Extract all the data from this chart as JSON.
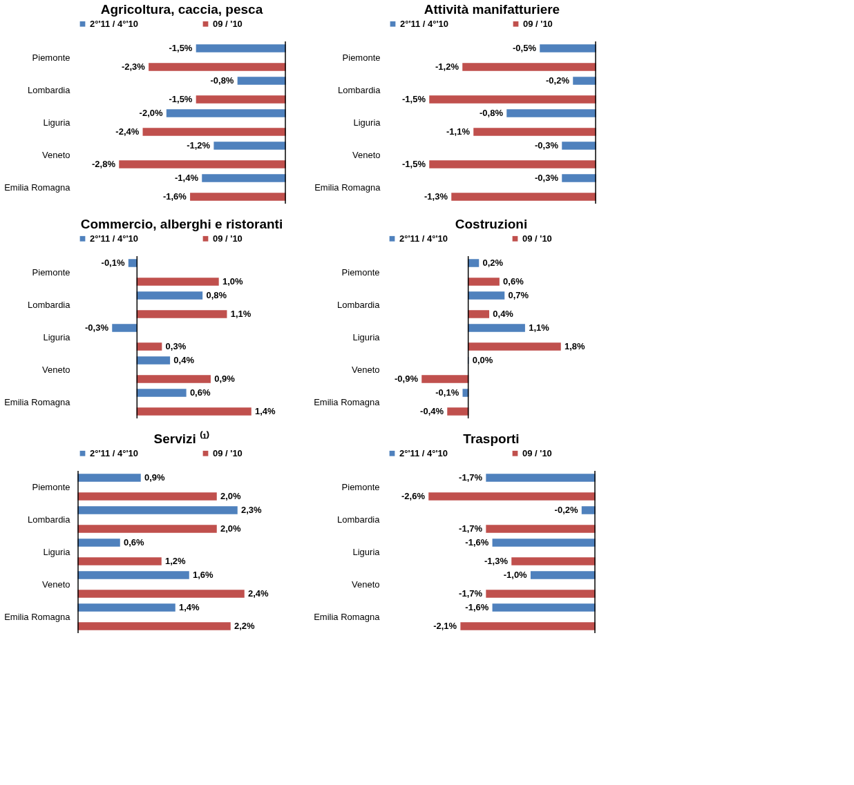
{
  "chart_data": [
    {
      "type": "bar",
      "orientation": "horizontal",
      "title": "Agricoltura, caccia, pesca",
      "categories": [
        "Piemonte",
        "Lombardia",
        "Liguria",
        "Veneto",
        "Emilia Romagna"
      ],
      "legend": "top",
      "tick_labels": "y",
      "series": [
        {
          "name": "2°'11 / 4°'10",
          "color": "#4f81bd",
          "values": [
            -1.5,
            -0.8,
            -2.0,
            -1.2,
            -1.4
          ],
          "value_labels": [
            "-1,5%",
            "-0,8%",
            "-2,0%",
            "-1,2%",
            "-1,4%"
          ]
        },
        {
          "name": "09 / '10",
          "color": "#c0504d",
          "values": [
            -2.3,
            -1.5,
            -2.4,
            -2.8,
            -1.6
          ],
          "value_labels": [
            "-2,3%",
            "-1,5%",
            "-2,4%",
            "-2,8%",
            "-1,6%"
          ]
        }
      ]
    },
    {
      "type": "bar",
      "orientation": "horizontal",
      "title": "Attività manifatturiere",
      "categories": [
        "Piemonte",
        "Lombardia",
        "Liguria",
        "Veneto",
        "Emilia Romagna"
      ],
      "legend": "top",
      "tick_labels": "y",
      "series": [
        {
          "name": "2°'11 / 4°'10",
          "color": "#4f81bd",
          "values": [
            -0.5,
            -0.2,
            -0.8,
            -0.3,
            -0.3
          ],
          "value_labels": [
            "-0,5%",
            "-0,2%",
            "-0,8%",
            "-0,3%",
            "-0,3%"
          ]
        },
        {
          "name": "09 / '10",
          "color": "#c0504d",
          "values": [
            -1.2,
            -1.5,
            -1.1,
            -1.5,
            -1.3
          ],
          "value_labels": [
            "-1,2%",
            "-1,5%",
            "-1,1%",
            "-1,5%",
            "-1,3%"
          ]
        }
      ]
    },
    {
      "type": "bar",
      "orientation": "horizontal",
      "title": "Commercio, alberghi e ristoranti",
      "categories": [
        "Piemonte",
        "Lombardia",
        "Liguria",
        "Veneto",
        "Emilia Romagna"
      ],
      "legend": "top",
      "tick_labels": "y",
      "series": [
        {
          "name": "2°'11 / 4°'10",
          "color": "#4f81bd",
          "values": [
            -0.1,
            0.8,
            -0.3,
            0.4,
            0.6
          ],
          "value_labels": [
            "-0,1%",
            "0,8%",
            "-0,3%",
            "0,4%",
            "0,6%"
          ]
        },
        {
          "name": "09 / '10",
          "color": "#c0504d",
          "values": [
            1.0,
            1.1,
            0.3,
            0.9,
            1.4
          ],
          "value_labels": [
            "1,0%",
            "1,1%",
            "0,3%",
            "0,9%",
            "1,4%"
          ]
        }
      ]
    },
    {
      "type": "bar",
      "orientation": "horizontal",
      "title": "Costruzioni",
      "categories": [
        "Piemonte",
        "Lombardia",
        "Liguria",
        "Veneto",
        "Emilia Romagna"
      ],
      "legend": "top",
      "tick_labels": "y",
      "series": [
        {
          "name": "2°'11 / 4°'10",
          "color": "#4f81bd",
          "values": [
            0.2,
            0.7,
            1.1,
            0.0,
            -0.1
          ],
          "value_labels": [
            "0,2%",
            "0,7%",
            "1,1%",
            "0,0%",
            "-0,1%"
          ]
        },
        {
          "name": "09 / '10",
          "color": "#c0504d",
          "values": [
            0.6,
            0.4,
            1.8,
            -0.9,
            -0.4
          ],
          "value_labels": [
            "0,6%",
            "0,4%",
            "1,8%",
            "-0,9%",
            "-0,4%"
          ]
        }
      ]
    },
    {
      "type": "bar",
      "orientation": "horizontal",
      "title": "Servizi ⁽¹⁾",
      "categories": [
        "Piemonte",
        "Lombardia",
        "Liguria",
        "Veneto",
        "Emilia Romagna"
      ],
      "legend": "top",
      "tick_labels": "y",
      "series": [
        {
          "name": "2°'11 / 4°'10",
          "color": "#4f81bd",
          "values": [
            0.9,
            2.3,
            0.6,
            1.6,
            1.4
          ],
          "value_labels": [
            "0,9%",
            "2,3%",
            "0,6%",
            "1,6%",
            "1,4%"
          ]
        },
        {
          "name": "09 / '10",
          "color": "#c0504d",
          "values": [
            2.0,
            2.0,
            1.2,
            2.4,
            2.2
          ],
          "value_labels": [
            "2,0%",
            "2,0%",
            "1,2%",
            "2,4%",
            "2,2%"
          ]
        }
      ]
    },
    {
      "type": "bar",
      "orientation": "horizontal",
      "title": "Trasporti",
      "categories": [
        "Piemonte",
        "Lombardia",
        "Liguria",
        "Veneto",
        "Emilia Romagna"
      ],
      "legend": "top",
      "tick_labels": "y",
      "series": [
        {
          "name": "2°'11 / 4°'10",
          "color": "#4f81bd",
          "values": [
            -1.7,
            -0.2,
            -1.6,
            -1.0,
            -1.6
          ],
          "value_labels": [
            "-1,7%",
            "-0,2%",
            "-1,6%",
            "-1,0%",
            "-1,6%"
          ]
        },
        {
          "name": "09 / '10",
          "color": "#c0504d",
          "values": [
            -2.6,
            -1.7,
            -1.3,
            -1.7,
            -2.1
          ],
          "value_labels": [
            "-2,6%",
            "-1,7%",
            "-1,3%",
            "-1,7%",
            "-2,1%"
          ]
        }
      ]
    }
  ]
}
